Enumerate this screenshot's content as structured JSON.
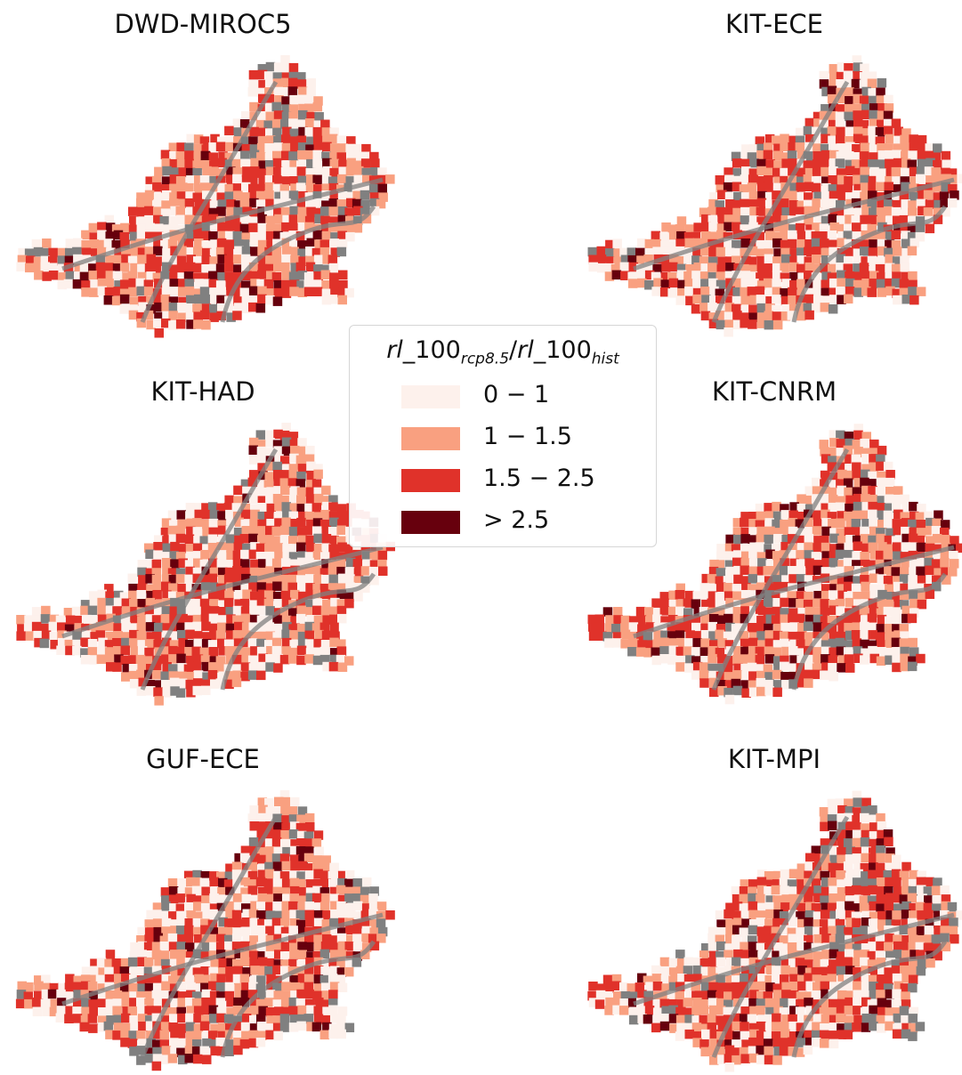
{
  "panels": [
    {
      "title": "DWD-MIROC5"
    },
    {
      "title": "KIT-ECE"
    },
    {
      "title": "KIT-HAD"
    },
    {
      "title": "KIT-CNRM"
    },
    {
      "title": "GUF-ECE"
    },
    {
      "title": "KIT-MPI"
    }
  ],
  "legend": {
    "title_base1": "rl",
    "title_mid1": "_100",
    "title_sub1": "rcp8.5",
    "title_sep": "/",
    "title_base2": "rl",
    "title_mid2": "_100",
    "title_sub2": "hist",
    "items": [
      {
        "label": "0 − 1",
        "color": "#fdf1ec"
      },
      {
        "label": "1 − 1.5",
        "color": "#f9a080"
      },
      {
        "label": "1.5 − 2.5",
        "color": "#e0322a"
      },
      {
        "label": "> 2.5",
        "color": "#67000d"
      }
    ]
  },
  "colors": {
    "no_data": "#808080"
  }
}
